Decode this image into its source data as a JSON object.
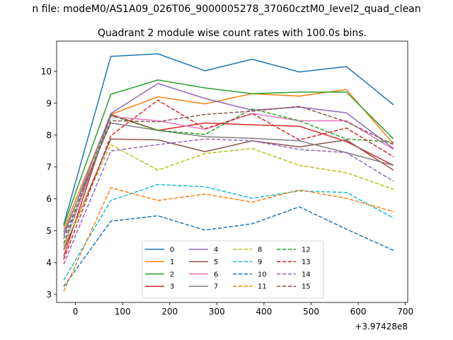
{
  "suptitle": "n file: modeM0/AS1A09_026T06_9000005278_37060cztM0_level2_quad_clean",
  "chart_data": {
    "type": "line",
    "title": "Quadrant 2 module wise count rates with 100.0s bins.",
    "xlabel": "",
    "ylabel": "",
    "x_offset_label": "+3.97428e8",
    "x": [
      -25,
      75,
      175,
      275,
      375,
      475,
      575,
      675
    ],
    "xlim": [
      -40,
      705
    ],
    "ylim": [
      2.75,
      10.95
    ],
    "xticks": [
      0,
      100,
      200,
      300,
      400,
      500,
      600,
      700
    ],
    "yticks": [
      3,
      4,
      5,
      6,
      7,
      8,
      9,
      10
    ],
    "grid": false,
    "legend": {
      "position": "lower-center",
      "columns": 4
    },
    "series": [
      {
        "name": "0",
        "color": "#1f77b4",
        "dash": "solid",
        "values": [
          5.2,
          10.47,
          10.55,
          10.02,
          10.38,
          9.98,
          10.15,
          8.95
        ]
      },
      {
        "name": "1",
        "color": "#ff7f0e",
        "dash": "solid",
        "values": [
          5.05,
          8.65,
          9.2,
          8.98,
          9.3,
          9.22,
          9.43,
          7.72
        ]
      },
      {
        "name": "2",
        "color": "#2ca02c",
        "dash": "solid",
        "values": [
          5.15,
          9.28,
          9.73,
          9.48,
          9.3,
          9.35,
          9.35,
          7.88
        ]
      },
      {
        "name": "3",
        "color": "#d62728",
        "dash": "solid",
        "values": [
          4.2,
          8.65,
          8.15,
          8.38,
          8.32,
          8.28,
          7.8,
          7.05
        ]
      },
      {
        "name": "4",
        "color": "#9467bd",
        "dash": "solid",
        "values": [
          4.85,
          8.68,
          9.62,
          9.15,
          8.78,
          8.88,
          8.7,
          7.58
        ]
      },
      {
        "name": "5",
        "color": "#8c564b",
        "dash": "solid",
        "values": [
          4.4,
          7.88,
          7.85,
          7.48,
          7.82,
          7.63,
          7.85,
          6.9
        ]
      },
      {
        "name": "6",
        "color": "#e377c2",
        "dash": "solid",
        "values": [
          4.5,
          8.58,
          8.45,
          8.18,
          8.68,
          8.45,
          8.45,
          7.55
        ]
      },
      {
        "name": "7",
        "color": "#7f7f7f",
        "dash": "solid",
        "values": [
          4.95,
          8.38,
          8.15,
          7.95,
          7.9,
          7.82,
          7.45,
          7.05
        ]
      },
      {
        "name": "8",
        "color": "#bcbd22",
        "dash": "dashed",
        "values": [
          4.5,
          7.7,
          6.9,
          7.42,
          7.58,
          7.05,
          6.82,
          6.3
        ]
      },
      {
        "name": "9",
        "color": "#17becf",
        "dash": "dashed",
        "values": [
          3.45,
          5.95,
          6.45,
          6.38,
          6.02,
          6.25,
          6.2,
          5.4
        ]
      },
      {
        "name": "10",
        "color": "#1f77b4",
        "dash": "dashed",
        "values": [
          3.25,
          5.3,
          5.47,
          5.02,
          5.22,
          5.75,
          5.05,
          4.38
        ]
      },
      {
        "name": "11",
        "color": "#ff7f0e",
        "dash": "dashed",
        "values": [
          3.1,
          6.35,
          5.95,
          6.15,
          5.9,
          6.28,
          6.02,
          5.6
        ]
      },
      {
        "name": "12",
        "color": "#2ca02c",
        "dash": "dashed",
        "values": [
          4.6,
          8.62,
          8.15,
          8.02,
          8.82,
          8.45,
          7.88,
          7.78
        ]
      },
      {
        "name": "13",
        "color": "#d62728",
        "dash": "dashed",
        "values": [
          4.1,
          7.98,
          9.1,
          8.2,
          8.68,
          7.85,
          8.22,
          7.32
        ]
      },
      {
        "name": "14",
        "color": "#9467bd",
        "dash": "dashed",
        "values": [
          3.95,
          7.5,
          7.7,
          7.88,
          7.82,
          7.55,
          7.45,
          6.55
        ]
      },
      {
        "name": "15",
        "color": "#8c564b",
        "dash": "dashed",
        "values": [
          4.75,
          8.45,
          8.42,
          8.65,
          8.75,
          8.9,
          8.42,
          7.7
        ]
      }
    ]
  }
}
